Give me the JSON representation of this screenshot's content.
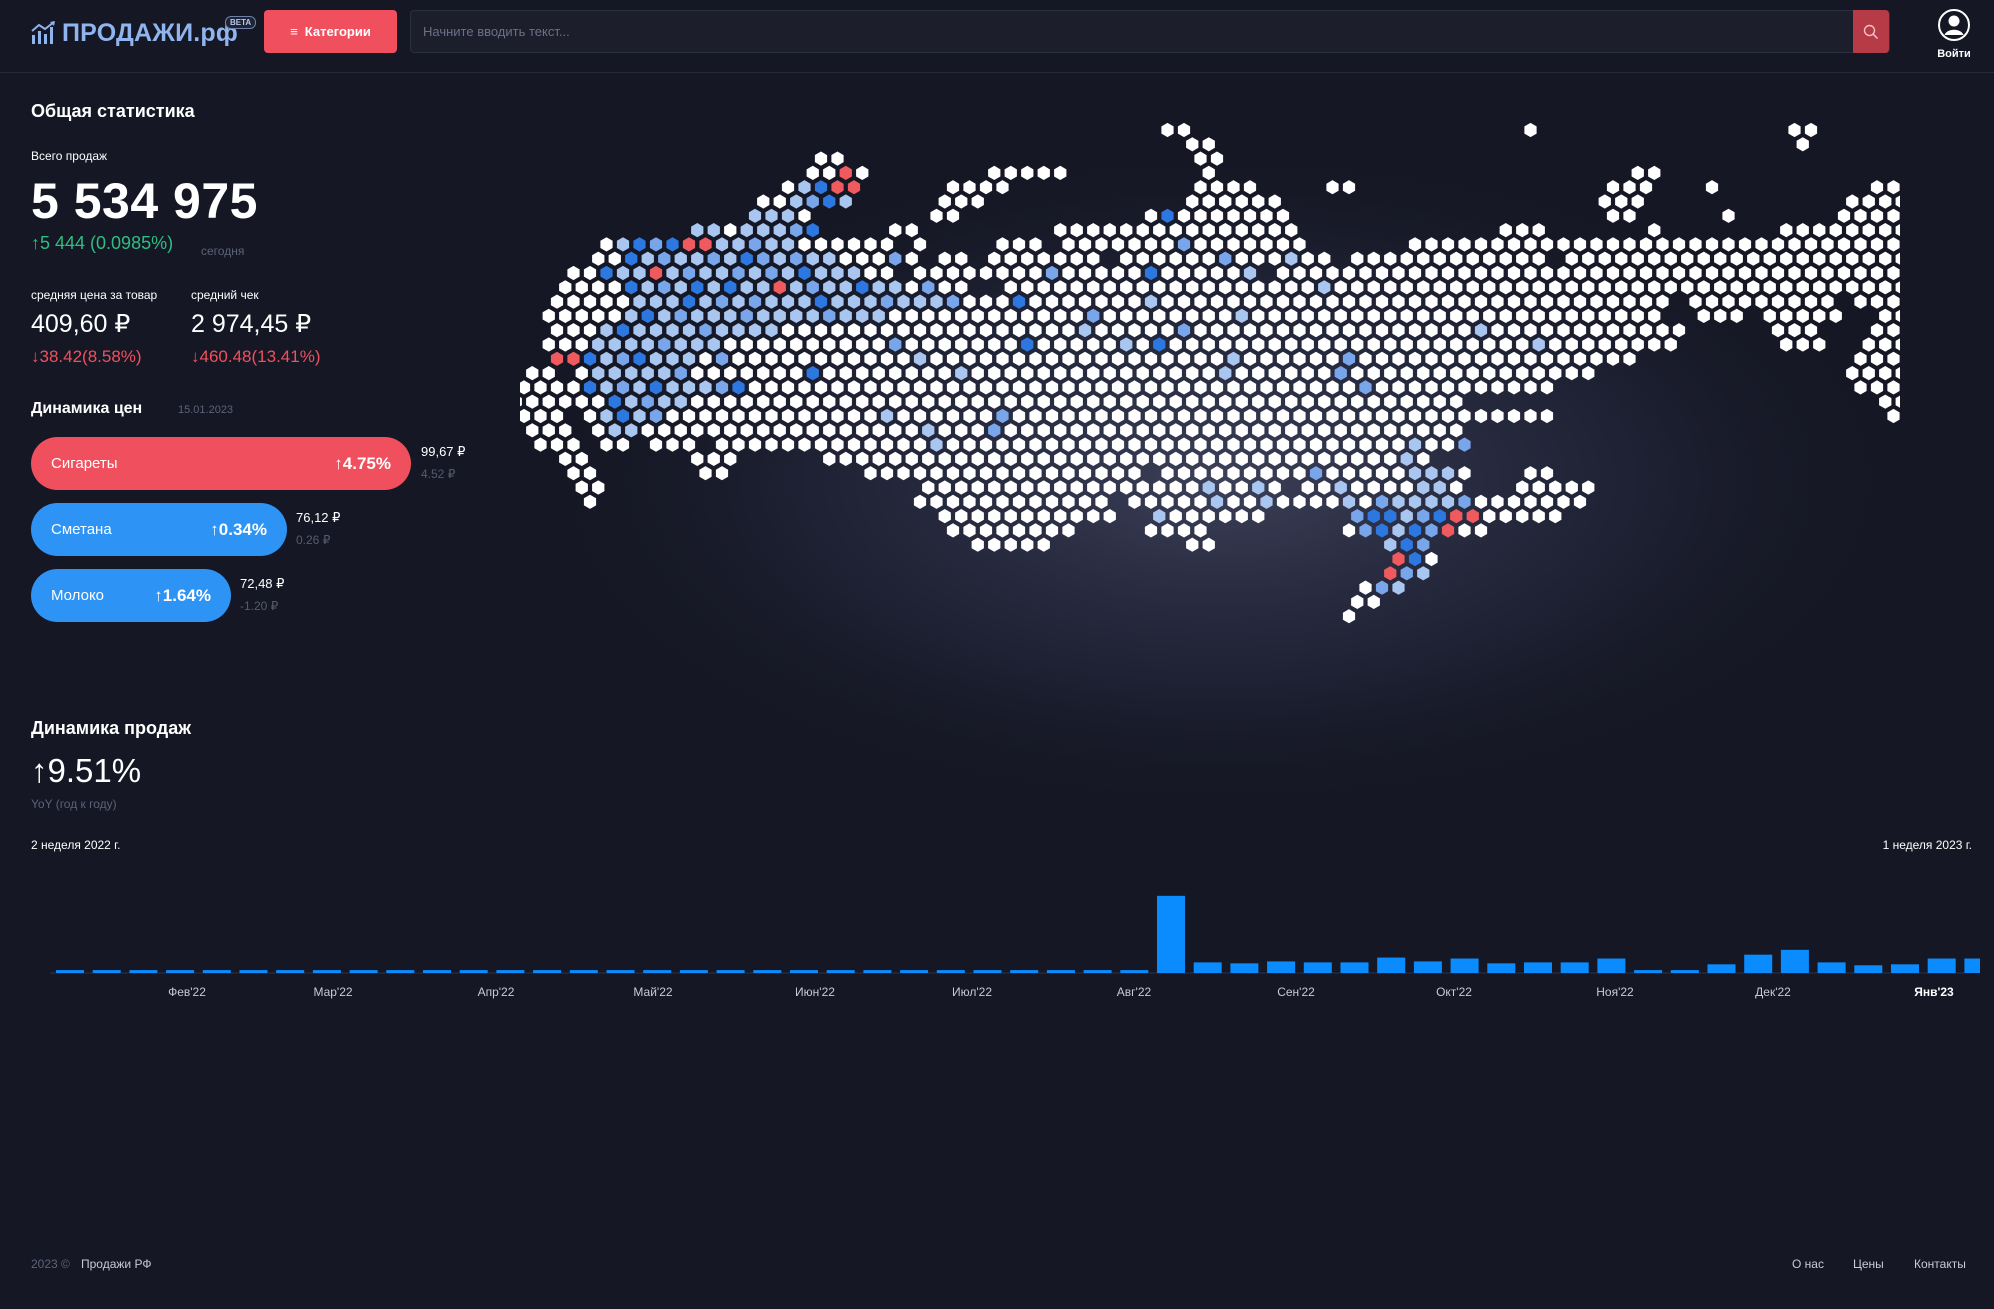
{
  "header": {
    "logo_text": "ПРОДАЖИ.рф",
    "beta_label": "BETA",
    "categories_label": "Категории",
    "search_placeholder": "Начните вводить текст...",
    "login_label": "Войти"
  },
  "stats": {
    "title": "Общая статистика",
    "total_label": "Всего продаж",
    "total_value": "5 534 975",
    "today_change": "5 444 (0.0985%)",
    "today_label": "сегодня",
    "avg_price_label": "средняя цена за товар",
    "avg_price_value": "409,60 ₽",
    "avg_price_change": "38.42(8.58%)",
    "avg_check_label": "средний чек",
    "avg_check_value": "2 974,45 ₽",
    "avg_check_change": "460.48(13.41%)"
  },
  "price_dynamics": {
    "title": "Динамика цен",
    "date": "15.01.2023",
    "items": [
      {
        "name": "Сигареты",
        "pct": "4.75%",
        "price": "99,67 ₽",
        "delta": "4.52 ₽",
        "color": "#f0505e"
      },
      {
        "name": "Сметана",
        "pct": "0.34%",
        "price": "76,12 ₽",
        "delta": "0.26 ₽",
        "color": "#2d93f5"
      },
      {
        "name": "Молоко",
        "pct": "1.64%",
        "price": "72,48 ₽",
        "delta": "-1.20 ₽",
        "color": "#2d93f5"
      }
    ]
  },
  "sales_dynamics": {
    "title": "Динамика продаж",
    "yoy_value": "9.51%",
    "yoy_label": "YoY (год к году)",
    "start_label": "2 неделя 2022 г.",
    "end_label": "1 неделя 2023 г."
  },
  "map": {
    "colors": {
      "base": "#ffffff",
      "light_blue": "#a9c6f0",
      "mid_blue": "#79a6ea",
      "blue": "#2d78e0",
      "red": "#ef5a5f"
    }
  },
  "chart_data": {
    "type": "bar",
    "title": "",
    "x_ticks": [
      "Фев'22",
      "Мар'22",
      "Апр'22",
      "Май'22",
      "Июн'22",
      "Июл'22",
      "Авг'22",
      "Сен'22",
      "Окт'22",
      "Ноя'22",
      "Дек'22",
      "Янв'23"
    ],
    "values": [
      3,
      3,
      3,
      3,
      3,
      3,
      3,
      3,
      3,
      3,
      3,
      3,
      3,
      3,
      3,
      3,
      3,
      3,
      3,
      3,
      3,
      3,
      3,
      3,
      3,
      3,
      3,
      3,
      3,
      3,
      80,
      11,
      10,
      12,
      11,
      11,
      16,
      12,
      15,
      10,
      11,
      11,
      15,
      3,
      3,
      9,
      19,
      24,
      11,
      8,
      9,
      15,
      15
    ],
    "color": "#0a8cff",
    "ylim": [
      0,
      85
    ]
  },
  "footer": {
    "copyright": "2023 ©",
    "brand": "Продажи РФ",
    "links": [
      "О нас",
      "Цены",
      "Контакты"
    ]
  }
}
